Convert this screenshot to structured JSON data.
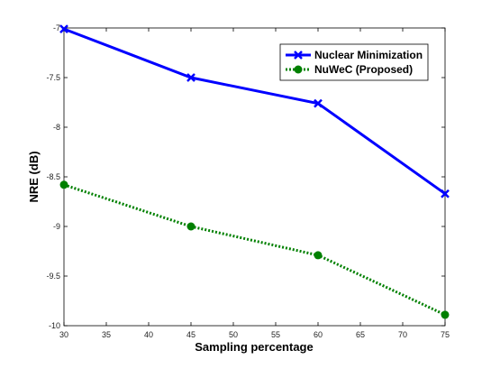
{
  "chart_data": {
    "type": "line",
    "xlabel": "Sampling percentage",
    "ylabel": "NRE (dB)",
    "x": [
      30,
      45,
      60,
      75
    ],
    "xlim": [
      30,
      75
    ],
    "ylim": [
      -10,
      -7
    ],
    "xticks": [
      "30",
      "35",
      "40",
      "45",
      "50",
      "55",
      "60",
      "65",
      "70",
      "75"
    ],
    "yticks": [
      "-7",
      "-7.5",
      "-8",
      "-8.5",
      "-9",
      "-9.5",
      "-10"
    ],
    "grid": false,
    "legend_position": "top-right",
    "series": [
      {
        "name": "Nuclear Minimization",
        "values": [
          -7.01,
          -7.5,
          -7.76,
          -8.67
        ],
        "color": "#0000ff",
        "marker": "x",
        "line": "solid"
      },
      {
        "name": "NuWeC (Proposed)",
        "values": [
          -8.58,
          -9.0,
          -9.29,
          -9.89
        ],
        "color": "#008000",
        "marker": "circle",
        "line": "dotted"
      }
    ]
  }
}
